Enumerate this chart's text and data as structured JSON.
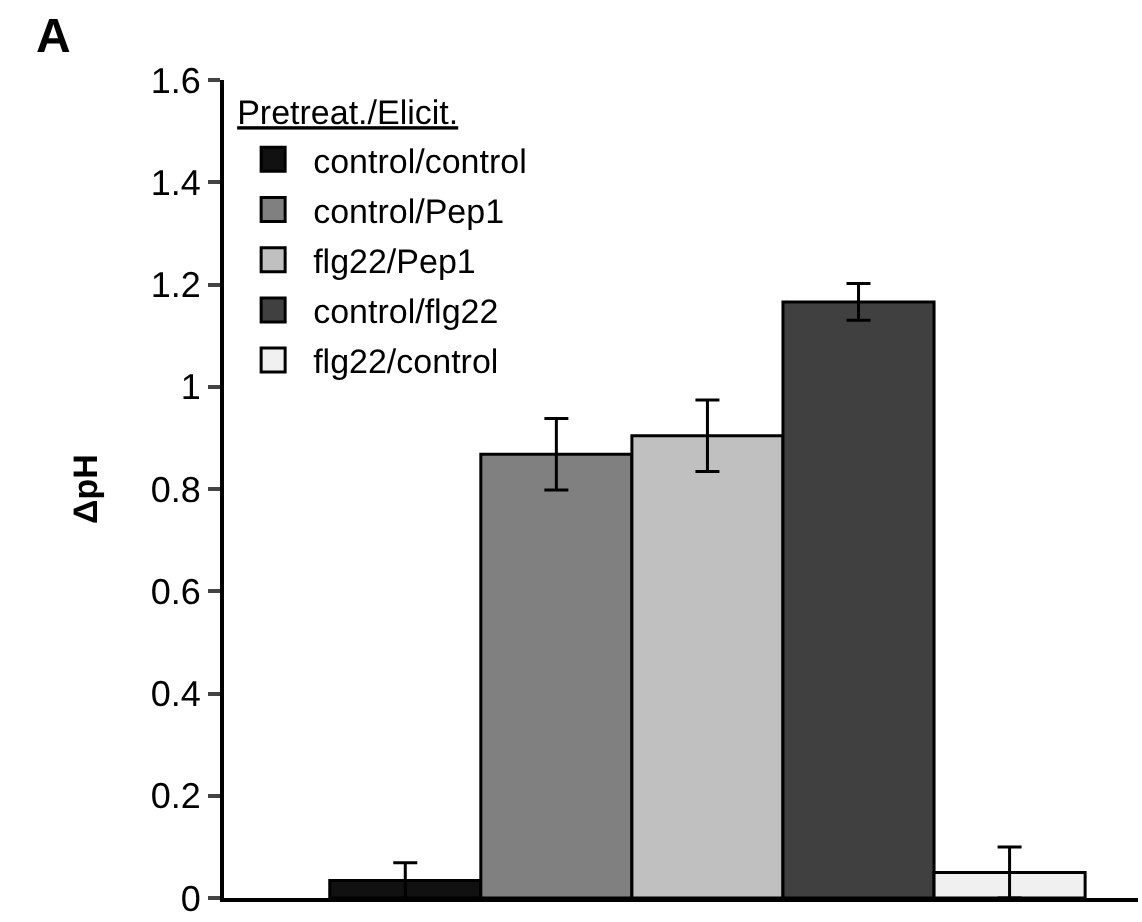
{
  "chart_data": {
    "type": "bar",
    "ylabel": "ΔpH",
    "legend_title": "Pretreat./Elicit.",
    "annotations": [
      "A"
    ],
    "categories": [
      null,
      null,
      null,
      null,
      null
    ],
    "series": [
      {
        "name": "control/control",
        "color": "#111111",
        "values": [
          0.034,
          null,
          null,
          null,
          null
        ],
        "errors": [
          0.035,
          null,
          null,
          null,
          null
        ]
      },
      {
        "name": "control/Pep1",
        "color": "#808080",
        "values": [
          null,
          0.868,
          null,
          null,
          null
        ],
        "errors": [
          null,
          0.07,
          null,
          null,
          null
        ]
      },
      {
        "name": "flg22/Pep1",
        "color": "#c0c0c0",
        "values": [
          null,
          null,
          0.904,
          null,
          null
        ],
        "errors": [
          null,
          null,
          0.07,
          null,
          null
        ]
      },
      {
        "name": "control/flg22",
        "color": "#404040",
        "values": [
          null,
          null,
          null,
          1.166,
          null
        ],
        "errors": [
          null,
          null,
          null,
          0.036,
          null
        ]
      },
      {
        "name": "flg22/control",
        "color": "#f0f0f0",
        "values": [
          null,
          null,
          null,
          null,
          0.05
        ],
        "errors": [
          null,
          null,
          null,
          null,
          0.05
        ]
      }
    ],
    "ylim": [
      0,
      1.6
    ],
    "yticks": [
      0,
      0.2,
      0.4,
      0.6,
      0.8,
      1,
      1.2,
      1.4,
      1.6
    ],
    "legend": "top left",
    "tick_labels": "y"
  }
}
